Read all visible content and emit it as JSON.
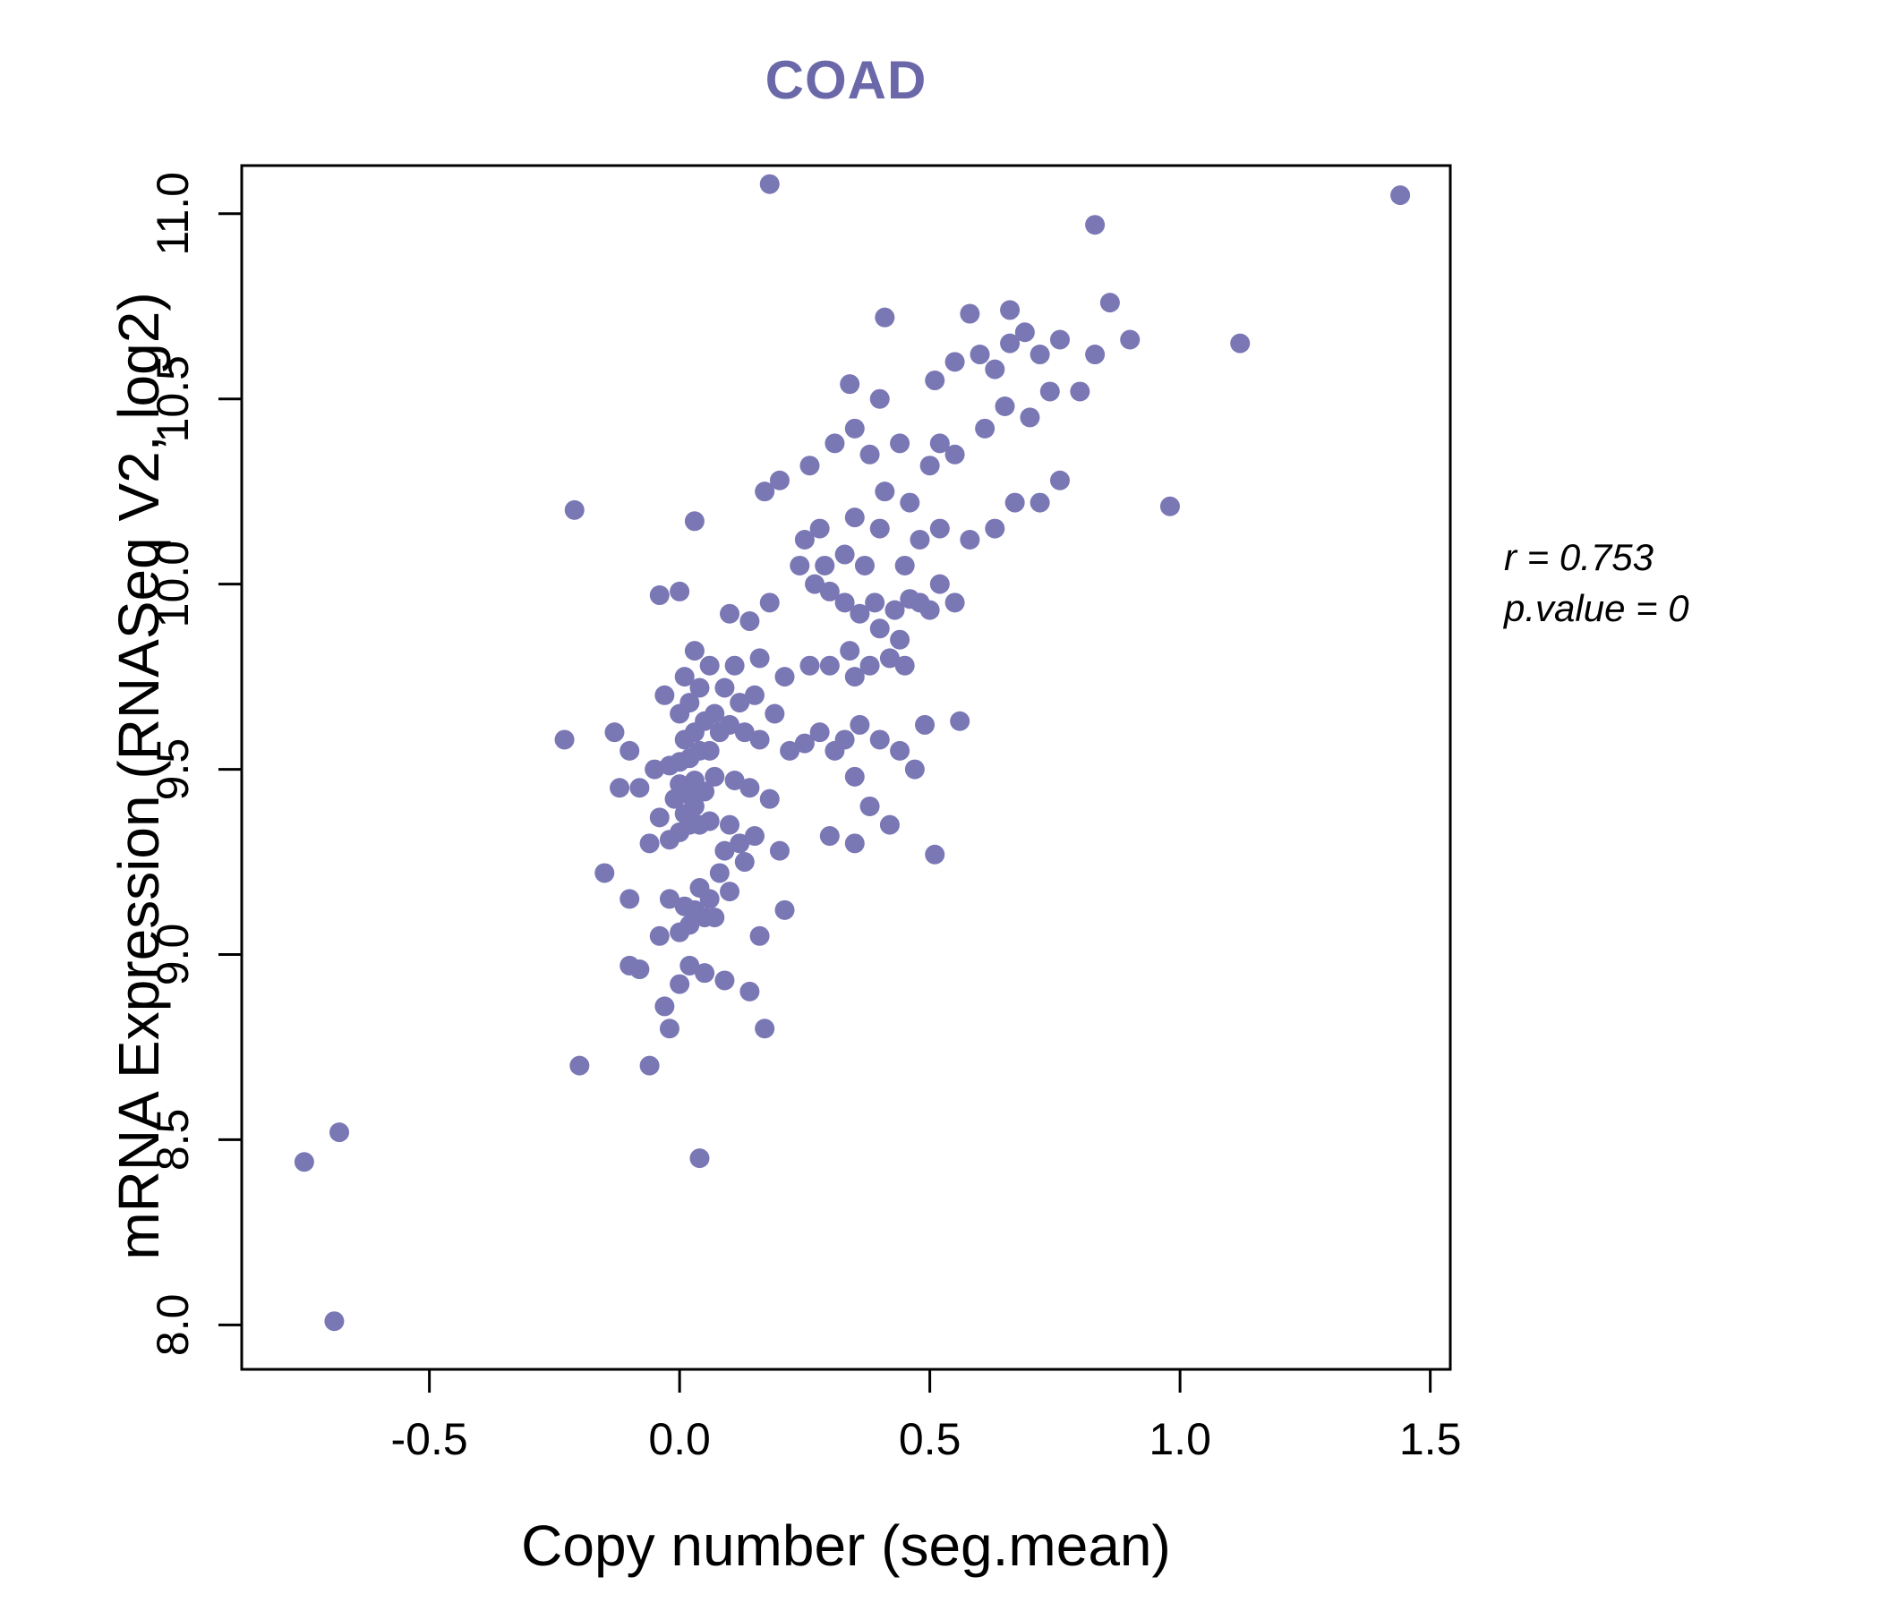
{
  "title": "COAD",
  "annotation": {
    "line1": "r = 0.753",
    "line2": "p.value = 0"
  },
  "colors": {
    "title": "#6b68a9",
    "point": "#7a77b5",
    "axis": "#000000"
  },
  "chart_data": {
    "type": "scatter",
    "title": "COAD",
    "xlabel": "Copy number (seg.mean)",
    "ylabel": "mRNA Expression (RNASeq V2, log2)",
    "xlim": [
      -0.875,
      1.54
    ],
    "ylim": [
      7.88,
      11.13
    ],
    "xticks": [
      -0.5,
      0.0,
      0.5,
      1.0,
      1.5
    ],
    "xtick_labels": [
      "-0.5",
      "0.0",
      "0.5",
      "1.0",
      "1.5"
    ],
    "yticks": [
      8.0,
      8.5,
      9.0,
      9.5,
      10.0,
      10.5,
      11.0
    ],
    "ytick_labels": [
      "8.0",
      "8.5",
      "9.0",
      "9.5",
      "10.0",
      "10.5",
      "11.0"
    ],
    "grid": false,
    "legend": "none",
    "point_color": "#7a77b5",
    "point_radius": 11,
    "stats": {
      "r": 0.753,
      "p_value": 0
    },
    "points": [
      [
        -0.75,
        8.44
      ],
      [
        -0.68,
        8.52
      ],
      [
        -0.69,
        8.01
      ],
      [
        0.04,
        8.45
      ],
      [
        -0.2,
        8.7
      ],
      [
        -0.06,
        8.7
      ],
      [
        -0.02,
        8.8
      ],
      [
        0.17,
        8.8
      ],
      [
        -0.03,
        8.86
      ],
      [
        0.0,
        8.92
      ],
      [
        0.09,
        8.93
      ],
      [
        0.14,
        8.9
      ],
      [
        0.05,
        8.95
      ],
      [
        -0.08,
        8.96
      ],
      [
        -0.1,
        8.97
      ],
      [
        0.02,
        8.97
      ],
      [
        -0.04,
        9.05
      ],
      [
        0.0,
        9.06
      ],
      [
        0.02,
        9.08
      ],
      [
        0.05,
        9.1
      ],
      [
        0.03,
        9.12
      ],
      [
        0.07,
        9.1
      ],
      [
        0.01,
        9.13
      ],
      [
        -0.02,
        9.15
      ],
      [
        0.06,
        9.15
      ],
      [
        -0.1,
        9.15
      ],
      [
        0.1,
        9.17
      ],
      [
        0.04,
        9.18
      ],
      [
        -0.15,
        9.22
      ],
      [
        0.08,
        9.22
      ],
      [
        0.13,
        9.25
      ],
      [
        0.21,
        9.12
      ],
      [
        0.2,
        9.28
      ],
      [
        0.16,
        9.05
      ],
      [
        -0.06,
        9.3
      ],
      [
        -0.02,
        9.31
      ],
      [
        0.0,
        9.33
      ],
      [
        0.02,
        9.35
      ],
      [
        0.04,
        9.35
      ],
      [
        0.06,
        9.36
      ],
      [
        -0.04,
        9.37
      ],
      [
        0.01,
        9.38
      ],
      [
        0.03,
        9.4
      ],
      [
        0.12,
        9.3
      ],
      [
        0.15,
        9.32
      ],
      [
        0.1,
        9.35
      ],
      [
        0.09,
        9.28
      ],
      [
        -0.01,
        9.42
      ],
      [
        0.02,
        9.43
      ],
      [
        0.05,
        9.44
      ],
      [
        -0.08,
        9.45
      ],
      [
        -0.12,
        9.45
      ],
      [
        0.0,
        9.46
      ],
      [
        0.03,
        9.47
      ],
      [
        0.07,
        9.48
      ],
      [
        0.11,
        9.47
      ],
      [
        0.14,
        9.45
      ],
      [
        0.18,
        9.42
      ],
      [
        -0.05,
        9.5
      ],
      [
        -0.02,
        9.51
      ],
      [
        0.0,
        9.52
      ],
      [
        0.02,
        9.53
      ],
      [
        0.04,
        9.55
      ],
      [
        0.06,
        9.55
      ],
      [
        -0.1,
        9.55
      ],
      [
        -0.23,
        9.58
      ],
      [
        -0.13,
        9.6
      ],
      [
        0.01,
        9.58
      ],
      [
        0.03,
        9.6
      ],
      [
        0.08,
        9.6
      ],
      [
        0.1,
        9.62
      ],
      [
        0.13,
        9.6
      ],
      [
        0.16,
        9.58
      ],
      [
        0.22,
        9.55
      ],
      [
        0.25,
        9.57
      ],
      [
        0.28,
        9.6
      ],
      [
        0.31,
        9.55
      ],
      [
        0.33,
        9.58
      ],
      [
        0.05,
        9.63
      ],
      [
        0.0,
        9.65
      ],
      [
        0.07,
        9.65
      ],
      [
        0.12,
        9.68
      ],
      [
        0.02,
        9.68
      ],
      [
        -0.03,
        9.7
      ],
      [
        0.04,
        9.72
      ],
      [
        0.09,
        9.72
      ],
      [
        0.15,
        9.7
      ],
      [
        0.19,
        9.65
      ],
      [
        0.3,
        9.32
      ],
      [
        0.35,
        9.3
      ],
      [
        0.38,
        9.4
      ],
      [
        0.42,
        9.35
      ],
      [
        0.51,
        9.27
      ],
      [
        0.47,
        9.5
      ],
      [
        0.44,
        9.55
      ],
      [
        0.49,
        9.62
      ],
      [
        0.56,
        9.63
      ],
      [
        0.35,
        9.48
      ],
      [
        0.4,
        9.58
      ],
      [
        0.36,
        9.62
      ],
      [
        0.01,
        9.75
      ],
      [
        0.06,
        9.78
      ],
      [
        0.11,
        9.78
      ],
      [
        0.21,
        9.75
      ],
      [
        0.26,
        9.78
      ],
      [
        0.3,
        9.78
      ],
      [
        0.35,
        9.75
      ],
      [
        0.38,
        9.78
      ],
      [
        0.16,
        9.8
      ],
      [
        0.03,
        9.82
      ],
      [
        0.34,
        9.82
      ],
      [
        0.42,
        9.8
      ],
      [
        0.45,
        9.78
      ],
      [
        0.44,
        9.85
      ],
      [
        0.4,
        9.88
      ],
      [
        -0.04,
        9.97
      ],
      [
        0.0,
        9.98
      ],
      [
        0.1,
        9.92
      ],
      [
        0.14,
        9.9
      ],
      [
        0.18,
        9.95
      ],
      [
        0.27,
        10.0
      ],
      [
        0.3,
        9.98
      ],
      [
        0.33,
        9.95
      ],
      [
        0.36,
        9.92
      ],
      [
        0.39,
        9.95
      ],
      [
        0.43,
        9.93
      ],
      [
        0.46,
        9.96
      ],
      [
        0.48,
        9.95
      ],
      [
        0.5,
        9.93
      ],
      [
        0.52,
        10.0
      ],
      [
        0.55,
        9.95
      ],
      [
        0.24,
        10.05
      ],
      [
        0.29,
        10.05
      ],
      [
        0.33,
        10.08
      ],
      [
        0.37,
        10.05
      ],
      [
        0.45,
        10.05
      ],
      [
        -0.21,
        10.2
      ],
      [
        0.03,
        10.17
      ],
      [
        0.25,
        10.12
      ],
      [
        0.28,
        10.15
      ],
      [
        0.35,
        10.18
      ],
      [
        0.4,
        10.15
      ],
      [
        0.48,
        10.12
      ],
      [
        0.52,
        10.15
      ],
      [
        0.58,
        10.12
      ],
      [
        0.63,
        10.15
      ],
      [
        0.67,
        10.22
      ],
      [
        0.72,
        10.22
      ],
      [
        0.76,
        10.28
      ],
      [
        0.98,
        10.21
      ],
      [
        0.17,
        10.25
      ],
      [
        0.2,
        10.28
      ],
      [
        0.41,
        10.25
      ],
      [
        0.46,
        10.22
      ],
      [
        0.26,
        10.32
      ],
      [
        0.31,
        10.38
      ],
      [
        0.35,
        10.42
      ],
      [
        0.38,
        10.35
      ],
      [
        0.44,
        10.38
      ],
      [
        0.5,
        10.32
      ],
      [
        0.55,
        10.35
      ],
      [
        0.61,
        10.42
      ],
      [
        0.65,
        10.48
      ],
      [
        0.7,
        10.45
      ],
      [
        0.74,
        10.52
      ],
      [
        0.52,
        10.38
      ],
      [
        0.34,
        10.54
      ],
      [
        0.4,
        10.5
      ],
      [
        0.51,
        10.55
      ],
      [
        0.55,
        10.6
      ],
      [
        0.6,
        10.62
      ],
      [
        0.63,
        10.58
      ],
      [
        0.66,
        10.65
      ],
      [
        0.69,
        10.68
      ],
      [
        0.72,
        10.62
      ],
      [
        0.76,
        10.66
      ],
      [
        0.8,
        10.52
      ],
      [
        0.83,
        10.62
      ],
      [
        0.9,
        10.66
      ],
      [
        1.12,
        10.65
      ],
      [
        0.41,
        10.72
      ],
      [
        0.58,
        10.73
      ],
      [
        0.66,
        10.74
      ],
      [
        0.86,
        10.76
      ],
      [
        0.18,
        11.08
      ],
      [
        0.83,
        10.97
      ],
      [
        1.44,
        11.05
      ]
    ]
  }
}
